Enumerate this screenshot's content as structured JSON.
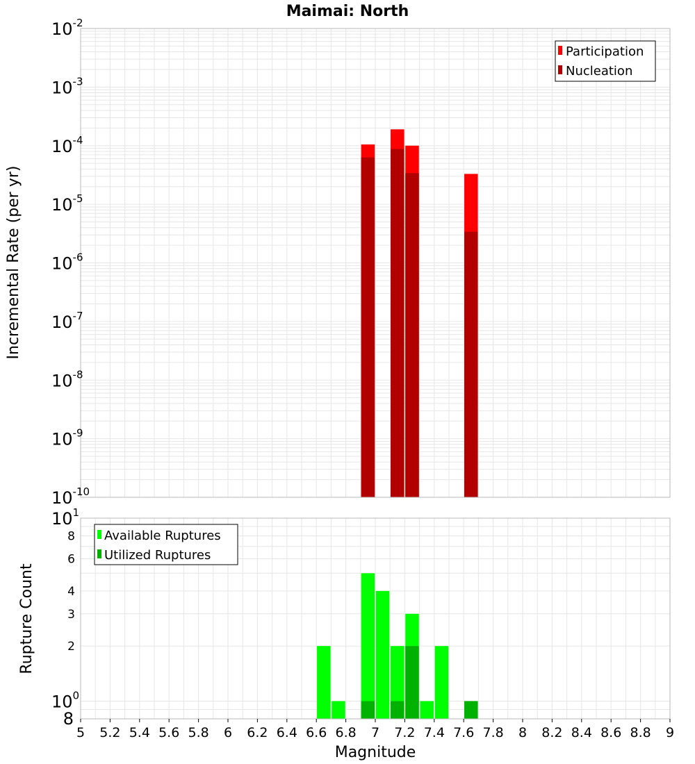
{
  "chart_data": [
    {
      "type": "bar",
      "title": "Maimai: North",
      "ylabel": "Incremental Rate (per yr)",
      "yscale": "log",
      "ylim": [
        1e-10,
        0.01
      ],
      "xlim": [
        5,
        9
      ],
      "bin_width": 0.1,
      "decade_ticks": [
        {
          "base": "10",
          "exp": "-2"
        },
        {
          "base": "10",
          "exp": "-3"
        },
        {
          "base": "10",
          "exp": "-4"
        },
        {
          "base": "10",
          "exp": "-5"
        },
        {
          "base": "10",
          "exp": "-6"
        },
        {
          "base": "10",
          "exp": "-7"
        },
        {
          "base": "10",
          "exp": "-8"
        },
        {
          "base": "10",
          "exp": "-9"
        },
        {
          "base": "10",
          "exp": "-10"
        }
      ],
      "legend": {
        "position": "top-right",
        "entries": [
          "Participation",
          "Nucleation"
        ]
      },
      "series": [
        {
          "name": "Participation",
          "color": "#ff0000",
          "x": [
            6.95,
            7.15,
            7.25,
            7.65
          ],
          "values": [
            0.000105,
            0.00019,
            0.0001,
            3.3e-05
          ]
        },
        {
          "name": "Nucleation",
          "color": "#b20000",
          "x": [
            6.95,
            7.15,
            7.25,
            7.65
          ],
          "values": [
            6.3e-05,
            8.8e-05,
            3.4e-05,
            3.4e-06
          ]
        }
      ]
    },
    {
      "type": "bar",
      "xlabel": "Magnitude",
      "ylabel": "Rupture Count",
      "yscale": "log",
      "ylim": [
        0.8,
        10
      ],
      "xlim": [
        5,
        9
      ],
      "bin_width": 0.1,
      "decade_ticks": [
        {
          "value": 10,
          "base": "10",
          "exp": "1"
        },
        {
          "value": 1,
          "base": "10",
          "exp": "0"
        }
      ],
      "minor_ticks": [
        {
          "value": 8,
          "label": "8"
        },
        {
          "value": 6,
          "label": "6"
        },
        {
          "value": 4,
          "label": "4"
        },
        {
          "value": 3,
          "label": "3"
        },
        {
          "value": 2,
          "label": "2"
        },
        {
          "value": 0.8,
          "label": "8"
        }
      ],
      "x_ticks": [
        "5",
        "5.2",
        "5.4",
        "5.6",
        "5.8",
        "6",
        "6.2",
        "6.4",
        "6.6",
        "6.8",
        "7",
        "7.2",
        "7.4",
        "7.6",
        "7.8",
        "8",
        "8.2",
        "8.4",
        "8.6",
        "8.8",
        "9"
      ],
      "legend": {
        "position": "top-left",
        "entries": [
          "Available Ruptures",
          "Utilized Ruptures"
        ]
      },
      "series": [
        {
          "name": "Available Ruptures",
          "color": "#00ff00",
          "x": [
            6.65,
            6.75,
            6.95,
            7.05,
            7.15,
            7.25,
            7.35,
            7.45,
            7.65
          ],
          "values": [
            2,
            1,
            5,
            4,
            2,
            3,
            1,
            2,
            1
          ]
        },
        {
          "name": "Utilized Ruptures",
          "color": "#00b200",
          "x": [
            6.95,
            7.15,
            7.25,
            7.65
          ],
          "values": [
            1,
            1,
            2,
            1
          ]
        }
      ]
    }
  ]
}
